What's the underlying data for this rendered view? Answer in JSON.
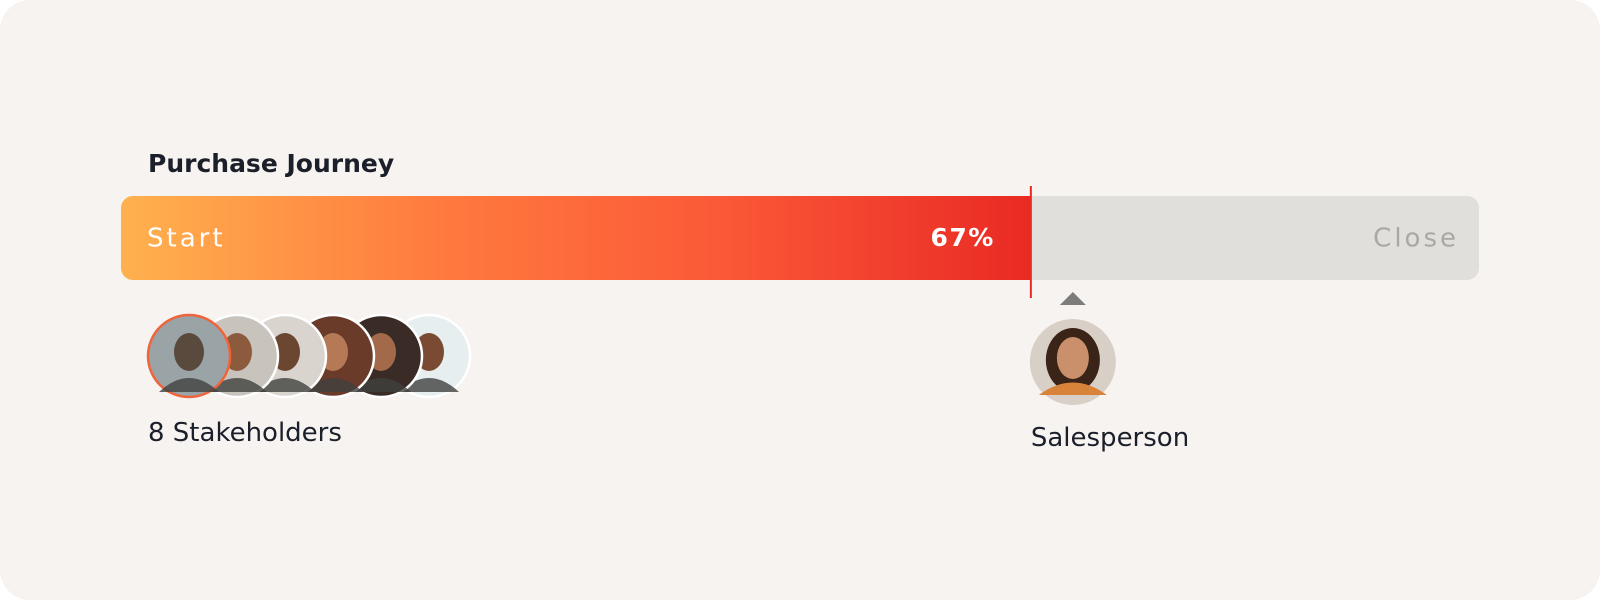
{
  "title": "Purchase Journey",
  "progress": {
    "start_label": "Start",
    "end_label": "Close",
    "value": 67,
    "label": "67%"
  },
  "stakeholders": {
    "label": "8 Stakeholders"
  },
  "salesperson": {
    "label": "Salesperson"
  }
}
